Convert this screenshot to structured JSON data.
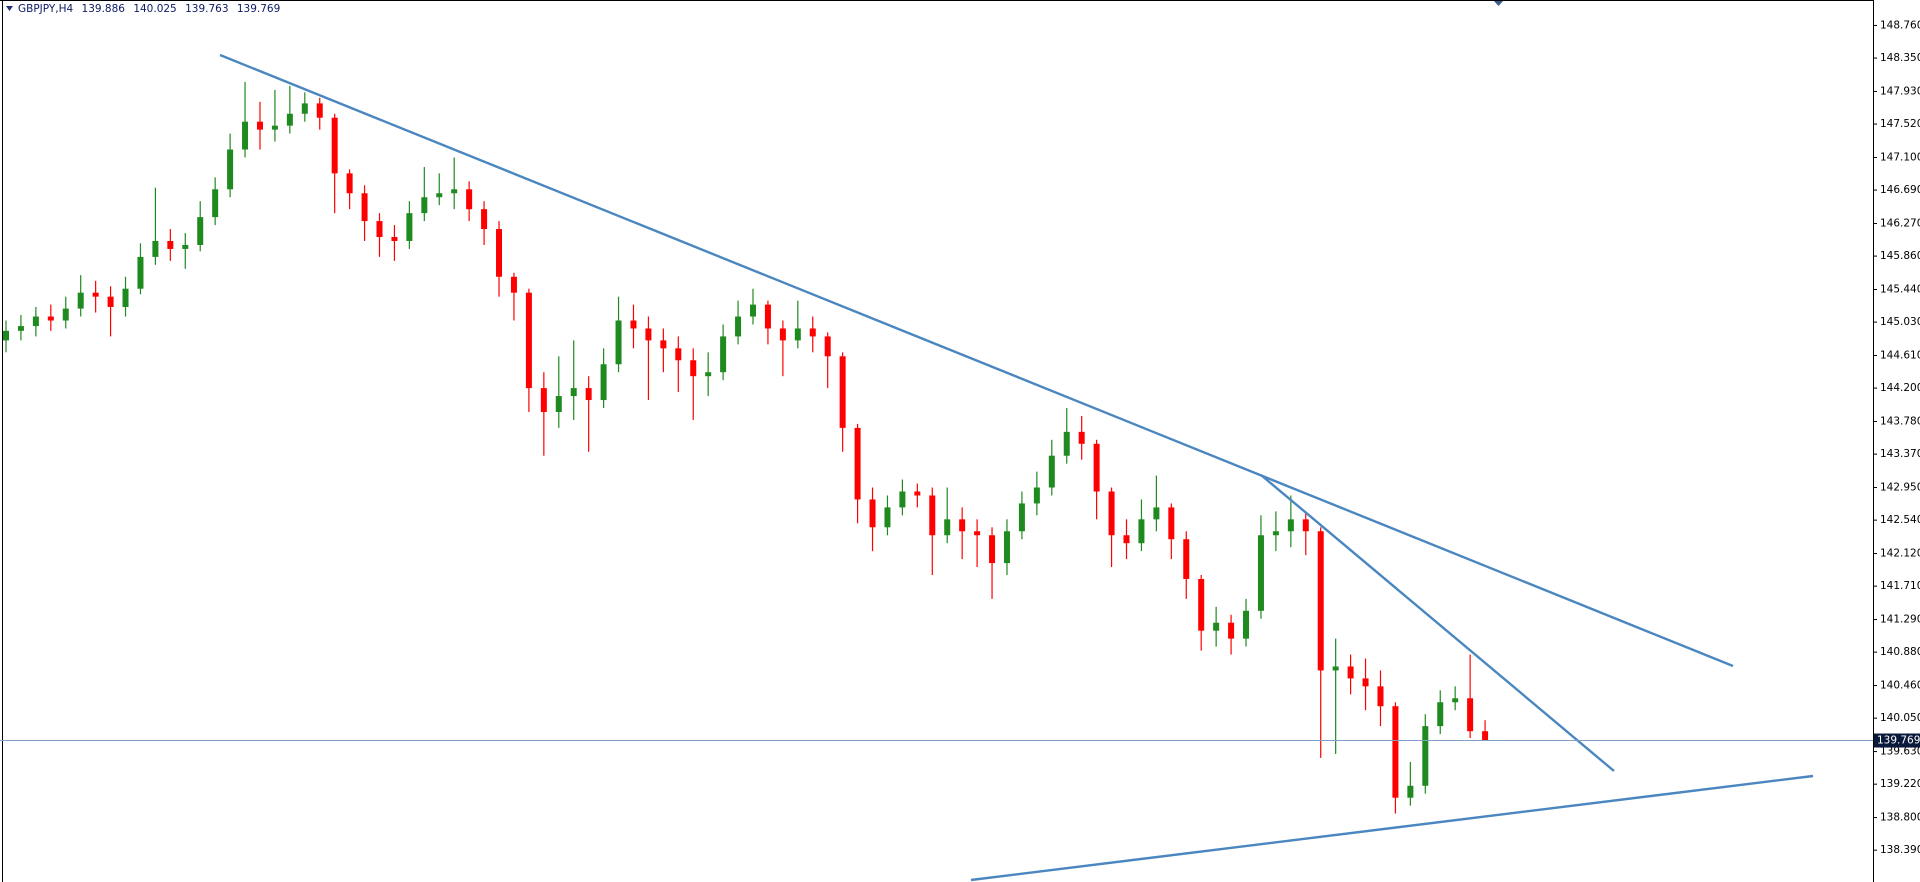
{
  "chart_data": {
    "type": "candlestick",
    "title": "GBPJPY,H4",
    "header_values": [
      "139.886",
      "140.025",
      "139.763",
      "139.769"
    ],
    "up_color": "#1f8a1f",
    "down_color": "#ff0000",
    "open": [
      144.8,
      144.92,
      144.98,
      145.1,
      145.05,
      145.2,
      145.4,
      145.35,
      145.22,
      145.45,
      145.85,
      146.05,
      145.95,
      146.0,
      146.35,
      146.7,
      147.2,
      147.55,
      147.45,
      147.5,
      147.65,
      147.78,
      147.6,
      146.9,
      146.65,
      146.3,
      146.1,
      146.05,
      146.4,
      146.6,
      146.65,
      146.7,
      146.45,
      146.2,
      145.6,
      145.4,
      144.2,
      143.9,
      144.1,
      144.2,
      144.05,
      144.5,
      145.05,
      144.95,
      144.8,
      144.7,
      144.55,
      144.35,
      144.4,
      144.85,
      145.1,
      145.25,
      144.95,
      144.8,
      144.95,
      144.85,
      144.6,
      143.7,
      142.8,
      142.45,
      142.7,
      142.9,
      142.85,
      142.35,
      142.55,
      142.4,
      142.35,
      142.0,
      142.4,
      142.75,
      142.95,
      143.35,
      143.65,
      143.5,
      142.9,
      142.35,
      142.25,
      142.55,
      142.7,
      142.3,
      141.8,
      141.15,
      141.25,
      141.05,
      141.4,
      142.35,
      142.4,
      142.55,
      142.4,
      140.65,
      140.7,
      140.55,
      140.45,
      140.2,
      139.05,
      139.2,
      139.95,
      140.25,
      140.3,
      139.886
    ],
    "high": [
      145.05,
      145.12,
      145.22,
      145.25,
      145.35,
      145.62,
      145.55,
      145.48,
      145.6,
      146.02,
      146.72,
      146.2,
      146.15,
      146.55,
      146.85,
      147.4,
      148.05,
      147.8,
      147.95,
      148.0,
      147.92,
      147.85,
      147.65,
      146.95,
      146.75,
      146.4,
      146.25,
      146.55,
      146.98,
      146.9,
      147.1,
      146.8,
      146.55,
      146.3,
      145.65,
      145.45,
      144.4,
      144.6,
      144.8,
      144.35,
      144.7,
      145.35,
      145.25,
      145.1,
      144.95,
      144.85,
      144.7,
      144.65,
      145.0,
      145.3,
      145.45,
      145.3,
      145.05,
      145.3,
      145.1,
      144.9,
      144.65,
      143.75,
      142.95,
      142.85,
      143.05,
      143.0,
      142.95,
      142.95,
      142.7,
      142.55,
      142.45,
      142.55,
      142.9,
      143.15,
      143.55,
      143.95,
      143.85,
      143.55,
      142.95,
      142.55,
      142.8,
      143.1,
      142.75,
      142.4,
      141.85,
      141.45,
      141.35,
      141.55,
      142.6,
      142.65,
      142.85,
      142.65,
      142.45,
      141.05,
      140.85,
      140.8,
      140.65,
      140.25,
      139.5,
      140.1,
      140.4,
      140.45,
      140.85,
      140.025
    ],
    "low": [
      144.65,
      144.8,
      144.85,
      144.92,
      144.95,
      145.1,
      145.15,
      144.85,
      145.1,
      145.38,
      145.75,
      145.8,
      145.7,
      145.92,
      146.25,
      146.6,
      147.1,
      147.2,
      147.3,
      147.4,
      147.55,
      147.45,
      146.4,
      146.45,
      146.05,
      145.85,
      145.8,
      145.95,
      146.3,
      146.5,
      146.45,
      146.3,
      146.0,
      145.35,
      145.05,
      143.9,
      143.35,
      143.7,
      143.8,
      143.4,
      143.95,
      144.4,
      144.7,
      144.05,
      144.4,
      144.15,
      143.8,
      144.1,
      144.3,
      144.75,
      145.0,
      144.75,
      144.35,
      144.7,
      144.65,
      144.2,
      143.4,
      142.5,
      142.15,
      142.35,
      142.6,
      142.7,
      141.85,
      142.25,
      142.05,
      141.95,
      141.55,
      141.85,
      142.3,
      142.6,
      142.85,
      143.25,
      143.3,
      142.55,
      141.95,
      142.05,
      142.15,
      142.4,
      142.05,
      141.55,
      140.9,
      140.95,
      140.85,
      140.95,
      141.3,
      142.15,
      142.2,
      142.1,
      139.55,
      139.6,
      140.35,
      140.15,
      139.95,
      138.85,
      138.95,
      139.1,
      139.85,
      140.15,
      139.8,
      139.763
    ],
    "close": [
      144.92,
      144.98,
      145.1,
      145.05,
      145.2,
      145.4,
      145.35,
      145.22,
      145.45,
      145.85,
      146.05,
      145.95,
      146.0,
      146.35,
      146.7,
      147.2,
      147.55,
      147.45,
      147.5,
      147.65,
      147.78,
      147.6,
      146.9,
      146.65,
      146.3,
      146.1,
      146.05,
      146.4,
      146.6,
      146.65,
      146.7,
      146.45,
      146.2,
      145.6,
      145.4,
      144.2,
      143.9,
      144.1,
      144.2,
      144.05,
      144.5,
      145.05,
      144.95,
      144.8,
      144.7,
      144.55,
      144.35,
      144.4,
      144.85,
      145.1,
      145.25,
      144.95,
      144.8,
      144.95,
      144.85,
      144.6,
      143.7,
      142.8,
      142.45,
      142.7,
      142.9,
      142.85,
      142.35,
      142.55,
      142.4,
      142.35,
      142.0,
      142.4,
      142.75,
      142.95,
      143.35,
      143.65,
      143.5,
      142.9,
      142.35,
      142.25,
      142.55,
      142.7,
      142.3,
      141.8,
      141.15,
      141.25,
      141.05,
      141.4,
      142.35,
      142.4,
      142.55,
      142.4,
      140.65,
      140.7,
      140.55,
      140.45,
      140.2,
      139.05,
      139.2,
      139.95,
      140.25,
      140.3,
      139.886,
      139.769
    ],
    "current_price": {
      "value": 139.769,
      "label": "139.769"
    },
    "ylim": [
      137.99,
      149.08
    ],
    "yticks": [
      {
        "value": 148.76,
        "label": "148.760"
      },
      {
        "value": 148.35,
        "label": "148.350"
      },
      {
        "value": 147.93,
        "label": "147.930"
      },
      {
        "value": 147.52,
        "label": "147.520"
      },
      {
        "value": 147.1,
        "label": "147.100"
      },
      {
        "value": 146.69,
        "label": "146.690"
      },
      {
        "value": 146.27,
        "label": "146.270"
      },
      {
        "value": 145.86,
        "label": "145.860"
      },
      {
        "value": 145.44,
        "label": "145.440"
      },
      {
        "value": 145.03,
        "label": "145.030"
      },
      {
        "value": 144.61,
        "label": "144.610"
      },
      {
        "value": 144.2,
        "label": "144.200"
      },
      {
        "value": 143.78,
        "label": "143.780"
      },
      {
        "value": 143.37,
        "label": "143.370"
      },
      {
        "value": 142.95,
        "label": "142.950"
      },
      {
        "value": 142.54,
        "label": "142.540"
      },
      {
        "value": 142.12,
        "label": "142.120"
      },
      {
        "value": 141.71,
        "label": "141.710"
      },
      {
        "value": 141.29,
        "label": "141.290"
      },
      {
        "value": 140.88,
        "label": "140.880"
      },
      {
        "value": 140.46,
        "label": "140.460"
      },
      {
        "value": 140.05,
        "label": "140.050"
      },
      {
        "value": 139.63,
        "label": "139.630"
      },
      {
        "value": 139.22,
        "label": "139.220"
      },
      {
        "value": 138.8,
        "label": "138.800"
      },
      {
        "value": 138.39,
        "label": "138.390"
      }
    ]
  }
}
